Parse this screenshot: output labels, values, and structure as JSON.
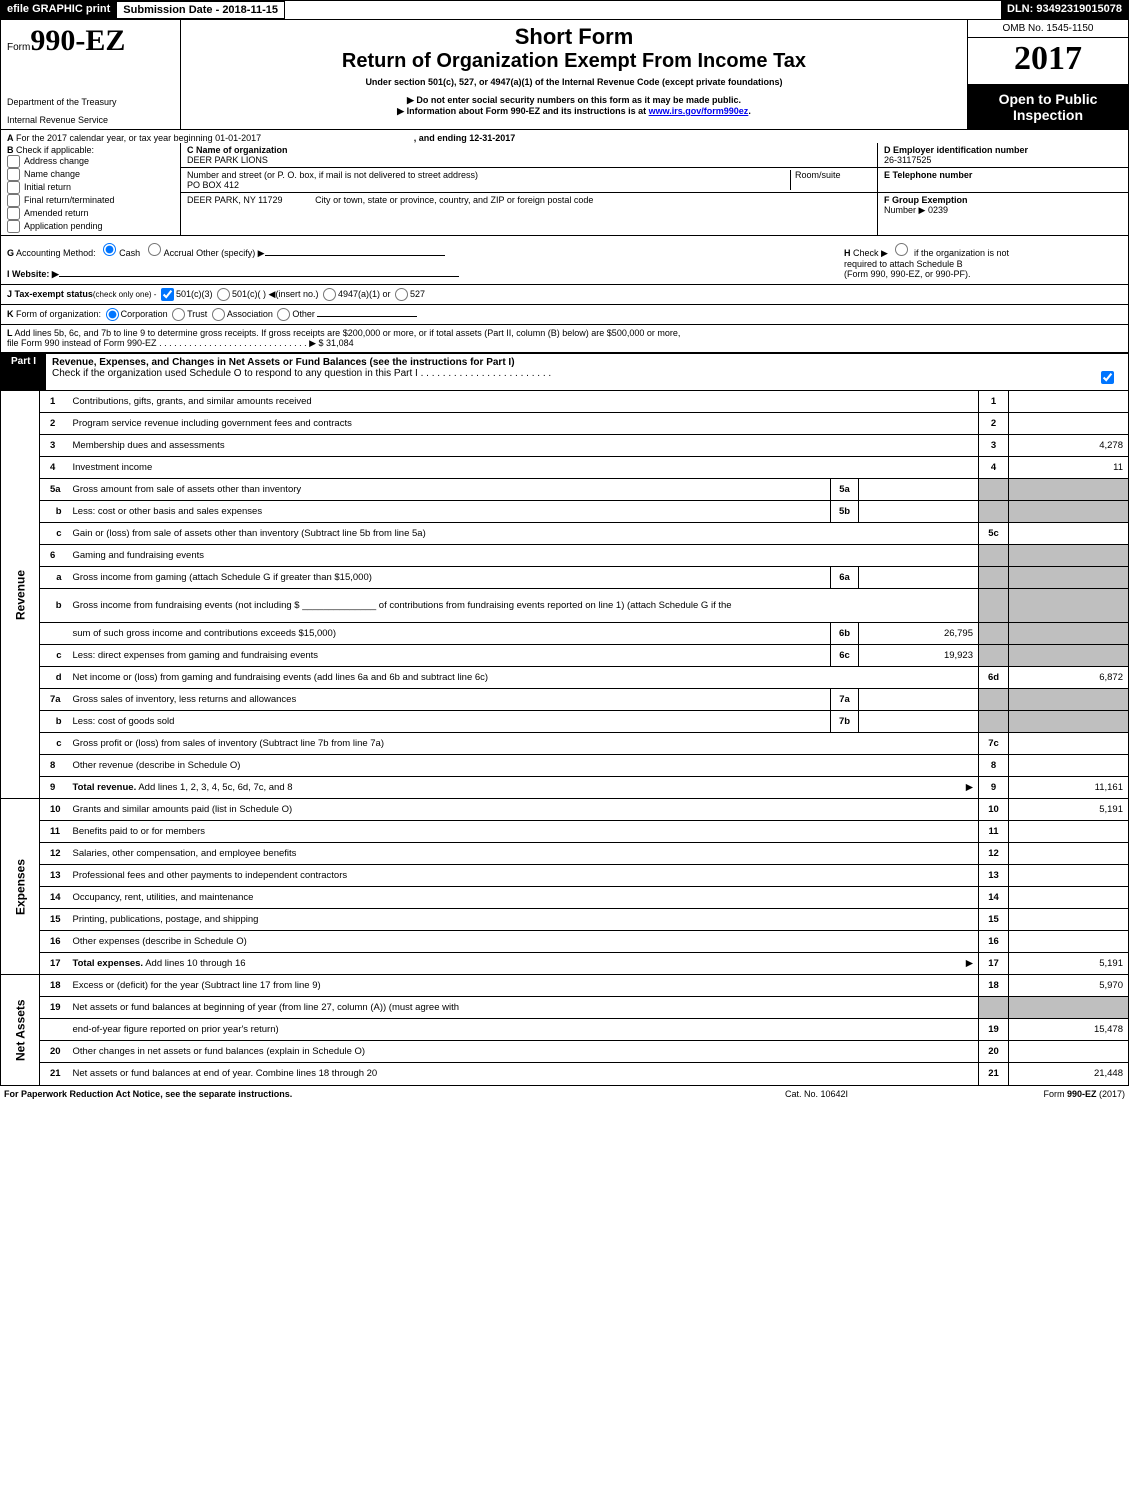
{
  "header": {
    "efile": "efile GRAPHIC print",
    "submission": "Submission Date - 2018-11-15",
    "dln": "DLN: 93492319015078"
  },
  "top": {
    "form_prefix": "Form",
    "form_no": "990-EZ",
    "dept1": "Department of the Treasury",
    "dept2": "Internal Revenue Service",
    "title1": "Short Form",
    "title2": "Return of Organization Exempt From Income Tax",
    "sub1": "Under section 501(c), 527, or 4947(a)(1) of the Internal Revenue Code (except private foundations)",
    "sub2": "▶ Do not enter social security numbers on this form as it may be made public.",
    "sub3_a": "▶ Information about Form 990-EZ and its instructions is at ",
    "sub3_link": "www.irs.gov/form990ez",
    "sub3_b": ".",
    "omb": "OMB No. 1545-1150",
    "year": "2017",
    "open1": "Open to Public",
    "open2": "Inspection"
  },
  "sectionA": {
    "a_label": "A",
    "a_text": "For the 2017 calendar year, or tax year beginning 01-01-2017",
    "a_end": ", and ending 12-31-2017",
    "b_label": "B",
    "b_text": "Check if applicable:",
    "b_opts": [
      "Address change",
      "Name change",
      "Initial return",
      "Final return/terminated",
      "Amended return",
      "Application pending"
    ],
    "c_label": "C Name of organization",
    "c_name": "DEER PARK LIONS",
    "c_street_lab": "Number and street (or P. O. box, if mail is not delivered to street address)",
    "c_room_lab": "Room/suite",
    "c_street": "PO BOX 412",
    "c_city_val": "DEER PARK, NY  11729",
    "c_city_lab": "City or town, state or province, country, and ZIP or foreign postal code",
    "d_label": "D Employer identification number",
    "d_val": "26-3117525",
    "e_label": "E Telephone number",
    "e_val": "",
    "f_label": "F Group Exemption",
    "f_label2": "Number  ▶",
    "f_val": "0239"
  },
  "sectionG": {
    "g_label": "G",
    "g_text": "Accounting Method:",
    "g_cash": "Cash",
    "g_accr": "Accrual",
    "g_other": "Other (specify) ▶",
    "h_label": "H",
    "h_text1": "Check ▶",
    "h_text2": "if the organization is not",
    "h_text3": "required to attach Schedule B",
    "h_text4": "(Form 990, 990-EZ, or 990-PF).",
    "i_label": "I Website: ▶",
    "j_label": "J Tax-exempt status",
    "j_note": "(check only one) -",
    "j_501c3": "501(c)(3)",
    "j_501c": "501(c)(  )",
    "j_insert": "◀(insert no.)",
    "j_4947": "4947(a)(1) or",
    "j_527": "527",
    "k_label": "K",
    "k_text": "Form of organization:",
    "k_opts": [
      "Corporation",
      "Trust",
      "Association",
      "Other"
    ],
    "l_label": "L",
    "l_text1": "Add lines 5b, 6c, and 7b to line 9 to determine gross receipts. If gross receipts are $200,000 or more, or if total assets (Part II, column (B) below) are $500,000 or more,",
    "l_text2": "file Form 990 instead of Form 990-EZ",
    "l_dots": " .  .  .  .  .  .  .  .  .  .  .  .  .  .  .  .  .  .  .  .  .  .  .  .  .  .  .  .  .  .  ▶",
    "l_val": "$ 31,084"
  },
  "part1": {
    "tag": "Part I",
    "desc": "Revenue, Expenses, and Changes in Net Assets or Fund Balances (see the instructions for Part I)",
    "check": "Check if the organization used Schedule O to respond to any question in this Part I",
    "check_dots": " .  .  .  .  .  .  .  .  .  .  .  .  .  .  .  .  .  .  .  .  .  .  .  ."
  },
  "sections": {
    "revenue": "Revenue",
    "expenses": "Expenses",
    "netassets": "Net Assets"
  },
  "rows": [
    {
      "n": "1",
      "d": "Contributions, gifts, grants, and similar amounts received",
      "ref": "1",
      "val": ""
    },
    {
      "n": "2",
      "d": "Program service revenue including government fees and contracts",
      "ref": "2",
      "val": ""
    },
    {
      "n": "3",
      "d": "Membership dues and assessments",
      "ref": "3",
      "val": "4,278"
    },
    {
      "n": "4",
      "d": "Investment income",
      "ref": "4",
      "val": "11"
    },
    {
      "n": "5a",
      "d": "Gross amount from sale of assets other than inventory",
      "sref": "5a",
      "sval": "",
      "shade": true
    },
    {
      "n": "b",
      "d": "Less: cost or other basis and sales expenses",
      "sref": "5b",
      "sval": "",
      "shade": true,
      "sub": true
    },
    {
      "n": "c",
      "d": "Gain or (loss) from sale of assets other than inventory (Subtract line 5b from line 5a)",
      "ref": "5c",
      "val": "",
      "sub": true
    },
    {
      "n": "6",
      "d": "Gaming and fundraising events",
      "shade": true,
      "noref": true
    },
    {
      "n": "a",
      "d": "Gross income from gaming (attach Schedule G if greater than $15,000)",
      "sref": "6a",
      "sval": "",
      "shade": true,
      "sub": true
    },
    {
      "n": "b",
      "d": "Gross income from fundraising events (not including $ ______________ of contributions from fundraising events reported on line 1) (attach Schedule G if the",
      "shade": true,
      "sub": true,
      "noref": true,
      "tall": true
    },
    {
      "n": "",
      "d": "sum of such gross income and contributions exceeds $15,000)",
      "sref": "6b",
      "sval": "26,795",
      "shade": true,
      "sub": true
    },
    {
      "n": "c",
      "d": "Less: direct expenses from gaming and fundraising events",
      "sref": "6c",
      "sval": "19,923",
      "shade": true,
      "sub": true
    },
    {
      "n": "d",
      "d": "Net income or (loss) from gaming and fundraising events (add lines 6a and 6b and subtract line 6c)",
      "ref": "6d",
      "val": "6,872",
      "sub": true
    },
    {
      "n": "7a",
      "d": "Gross sales of inventory, less returns and allowances",
      "sref": "7a",
      "sval": "",
      "shade": true
    },
    {
      "n": "b",
      "d": "Less: cost of goods sold",
      "sref": "7b",
      "sval": "",
      "shade": true,
      "sub": true
    },
    {
      "n": "c",
      "d": "Gross profit or (loss) from sales of inventory (Subtract line 7b from line 7a)",
      "ref": "7c",
      "val": "",
      "sub": true
    },
    {
      "n": "8",
      "d": "Other revenue (describe in Schedule O)",
      "ref": "8",
      "val": ""
    },
    {
      "n": "9",
      "d": "Total revenue. Add lines 1, 2, 3, 4, 5c, 6d, 7c, and 8",
      "ref": "9",
      "val": "11,161",
      "bold": true,
      "arrow": true
    }
  ],
  "exp_rows": [
    {
      "n": "10",
      "d": "Grants and similar amounts paid (list in Schedule O)",
      "ref": "10",
      "val": "5,191"
    },
    {
      "n": "11",
      "d": "Benefits paid to or for members",
      "ref": "11",
      "val": ""
    },
    {
      "n": "12",
      "d": "Salaries, other compensation, and employee benefits",
      "ref": "12",
      "val": ""
    },
    {
      "n": "13",
      "d": "Professional fees and other payments to independent contractors",
      "ref": "13",
      "val": ""
    },
    {
      "n": "14",
      "d": "Occupancy, rent, utilities, and maintenance",
      "ref": "14",
      "val": ""
    },
    {
      "n": "15",
      "d": "Printing, publications, postage, and shipping",
      "ref": "15",
      "val": ""
    },
    {
      "n": "16",
      "d": "Other expenses (describe in Schedule O)",
      "ref": "16",
      "val": ""
    },
    {
      "n": "17",
      "d": "Total expenses. Add lines 10 through 16",
      "ref": "17",
      "val": "5,191",
      "bold": true,
      "arrow": true
    }
  ],
  "na_rows": [
    {
      "n": "18",
      "d": "Excess or (deficit) for the year (Subtract line 17 from line 9)",
      "ref": "18",
      "val": "5,970"
    },
    {
      "n": "19",
      "d": "Net assets or fund balances at beginning of year (from line 27, column (A)) (must agree with",
      "shade": true,
      "noref": true
    },
    {
      "n": "",
      "d": "end-of-year figure reported on prior year's return)",
      "ref": "19",
      "val": "15,478",
      "sub": true
    },
    {
      "n": "20",
      "d": "Other changes in net assets or fund balances (explain in Schedule O)",
      "ref": "20",
      "val": ""
    },
    {
      "n": "21",
      "d": "Net assets or fund balances at end of year. Combine lines 18 through 20",
      "ref": "21",
      "val": "21,448"
    }
  ],
  "footer": {
    "left": "For Paperwork Reduction Act Notice, see the separate instructions.",
    "mid": "Cat. No. 10642I",
    "right_a": "Form ",
    "right_b": "990-EZ",
    "right_c": " (2017)"
  },
  "colors": {
    "shade": "#bfbfbf",
    "black": "#000000",
    "link": "#0000ee"
  }
}
